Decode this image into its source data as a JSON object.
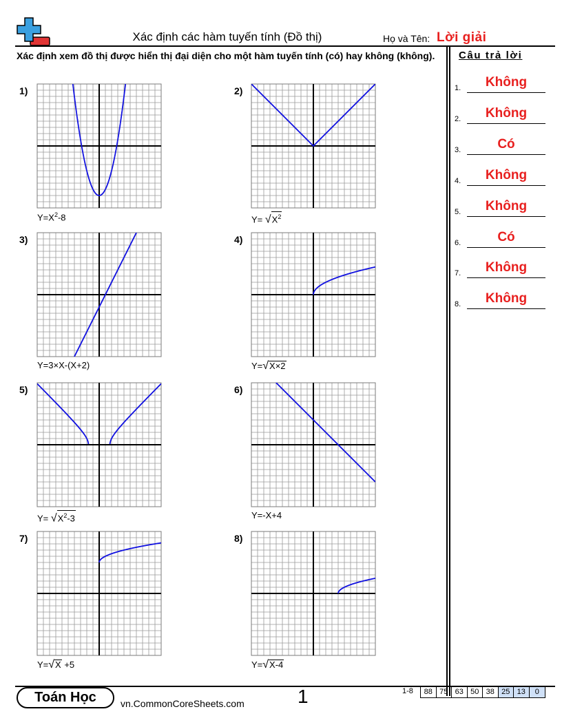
{
  "header": {
    "title": "Xác định các hàm tuyến tính (Đồ thị)",
    "name_label": "Họ và Tên:",
    "name_value": "Lời giải"
  },
  "instructions": "Xác định xem đồ thị được hiển thị đại diện cho một hàm tuyến tính (có) hay không (không).",
  "answer_key": {
    "heading": "Câu trả lời",
    "items": [
      {
        "num": "1.",
        "answer": "Không"
      },
      {
        "num": "2.",
        "answer": "Không"
      },
      {
        "num": "3.",
        "answer": "Có"
      },
      {
        "num": "4.",
        "answer": "Không"
      },
      {
        "num": "5.",
        "answer": "Không"
      },
      {
        "num": "6.",
        "answer": "Có"
      },
      {
        "num": "7.",
        "answer": "Không"
      },
      {
        "num": "8.",
        "answer": "Không"
      }
    ]
  },
  "problems": [
    {
      "num": "1)",
      "eq": {
        "pre": "Y=X",
        "sup": "2",
        "post": "-8"
      },
      "func": "x^2-8",
      "grid": 20,
      "axis_range": [
        -10,
        10
      ]
    },
    {
      "num": "2)",
      "eq": {
        "pre": "Y= ",
        "rad": "X",
        "radsup": "2"
      },
      "func": "sqrt(x^2)",
      "grid": 20,
      "axis_range": [
        -10,
        10
      ]
    },
    {
      "num": "3)",
      "eq": {
        "pre": "Y=3×X-(X+2)"
      },
      "func": "3x-(x+2)",
      "grid": 20,
      "axis_range": [
        -10,
        10
      ]
    },
    {
      "num": "4)",
      "eq": {
        "pre": "Y=",
        "rad": "X×2"
      },
      "func": "sqrt(2x)",
      "grid": 20,
      "axis_range": [
        -10,
        10
      ]
    },
    {
      "num": "5)",
      "eq": {
        "pre": "Y= ",
        "rad": "X",
        "radsup": "2",
        "radpost": "-3"
      },
      "func": "sqrt(x^2-3)",
      "grid": 20,
      "axis_range": [
        -10,
        10
      ]
    },
    {
      "num": "6)",
      "eq": {
        "pre": "Y=-X+4"
      },
      "func": "-x+4",
      "grid": 20,
      "axis_range": [
        -10,
        10
      ]
    },
    {
      "num": "7)",
      "eq": {
        "pre": "Y=",
        "rad": "X",
        "post": " +5"
      },
      "func": "sqrt(x)+5",
      "grid": 20,
      "axis_range": [
        -10,
        10
      ]
    },
    {
      "num": "8)",
      "eq": {
        "pre": "Y=",
        "rad": "X-4"
      },
      "func": "sqrt(x-4)",
      "grid": 20,
      "axis_range": [
        -10,
        10
      ]
    }
  ],
  "footer": {
    "badge": "Toán Học",
    "site": "vn.CommonCoreSheets.com",
    "page": "1",
    "range_label": "1-8",
    "scores": [
      "88",
      "75",
      "63",
      "50",
      "38",
      "25",
      "13",
      "0"
    ],
    "highlighted_scores": [
      "25",
      "13",
      "0"
    ]
  },
  "colors": {
    "answer_red": "#e8201f",
    "curve_blue": "#1010e0",
    "logo_blue": "#3aa0e0",
    "logo_red": "#e03434",
    "score_highlight": "#cfe0f7"
  }
}
